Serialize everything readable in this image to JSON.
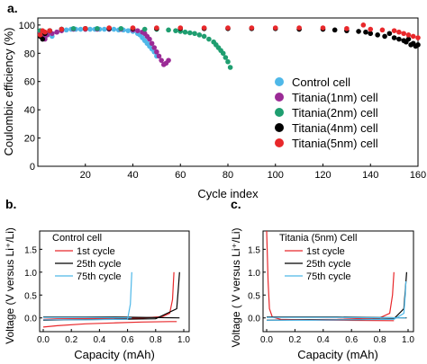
{
  "panels": {
    "a": "a.",
    "b": "b.",
    "c": "c."
  },
  "chart_data": [
    {
      "panel": "a",
      "type": "scatter",
      "xlabel": "Cycle index",
      "ylabel": "Coulombic efficiency (%)",
      "xlim": [
        0,
        160
      ],
      "ylim": [
        0,
        105
      ],
      "xticks": [
        20,
        40,
        60,
        80,
        100,
        120,
        140,
        160
      ],
      "yticks": [
        0,
        20,
        40,
        60,
        80,
        100
      ],
      "legend_position": "bottom-right",
      "series": [
        {
          "name": "Control cell",
          "color": "#4fb8e8",
          "x": [
            1,
            2,
            3,
            4,
            5,
            6,
            8,
            10,
            12,
            14,
            16,
            18,
            20,
            22,
            24,
            26,
            28,
            30,
            32,
            34,
            36,
            38,
            40,
            42,
            43,
            44,
            45,
            46,
            47,
            48,
            49,
            50
          ],
          "y": [
            96,
            93,
            91,
            94,
            95,
            92,
            95,
            97,
            96.5,
            97,
            97,
            97,
            97,
            97,
            97,
            97,
            97,
            97,
            97,
            96.5,
            96.5,
            96,
            95.5,
            94,
            93,
            91,
            89,
            87,
            85,
            83,
            81,
            78
          ]
        },
        {
          "name": "Titania(1nm) cell",
          "color": "#9b2b96",
          "x": [
            1,
            2,
            3,
            4,
            6,
            8,
            10,
            15,
            20,
            25,
            30,
            35,
            40,
            42,
            44,
            45,
            46,
            47,
            48,
            49,
            50,
            51,
            52,
            53,
            54,
            55
          ],
          "y": [
            95,
            92,
            90,
            93,
            94,
            95,
            96,
            97,
            97,
            97,
            97,
            97,
            96.5,
            96,
            95,
            94,
            92,
            90,
            87,
            84,
            81,
            78,
            75,
            72,
            73,
            75
          ]
        },
        {
          "name": "Titania(2nm) cell",
          "color": "#1f9e70",
          "x": [
            1,
            2,
            3,
            5,
            10,
            15,
            20,
            25,
            30,
            35,
            40,
            45,
            50,
            55,
            58,
            60,
            62,
            64,
            66,
            68,
            70,
            72,
            74,
            75,
            76,
            77,
            78,
            79,
            80,
            81
          ],
          "y": [
            96,
            95,
            94,
            96,
            97,
            97.5,
            97.5,
            97.5,
            97.5,
            97.5,
            97.5,
            97,
            97,
            96.5,
            96,
            95.5,
            95,
            94.5,
            94,
            93,
            92,
            90,
            88,
            86,
            84,
            82,
            80,
            77,
            74,
            70
          ]
        },
        {
          "name": "Titania(4nm) cell",
          "color": "#000000",
          "x": [
            1,
            2,
            3,
            5,
            10,
            20,
            30,
            40,
            50,
            60,
            70,
            80,
            90,
            100,
            110,
            120,
            125,
            130,
            135,
            138,
            140,
            143,
            146,
            148,
            150,
            152,
            154,
            155,
            156,
            157,
            158,
            159,
            160
          ],
          "y": [
            92,
            90,
            94,
            96,
            97,
            97.5,
            97.5,
            97.5,
            97.5,
            97.5,
            97.5,
            97.5,
            97.5,
            97.5,
            97,
            97,
            96.5,
            96,
            95.5,
            95,
            94,
            93,
            92,
            94,
            91,
            90,
            89,
            88,
            90,
            86,
            87,
            85,
            86
          ]
        },
        {
          "name": "Titania(5nm) cell",
          "color": "#e8282b",
          "x": [
            1,
            2,
            3,
            5,
            10,
            20,
            30,
            40,
            50,
            60,
            70,
            80,
            90,
            100,
            110,
            120,
            130,
            137,
            140,
            145,
            150,
            152,
            154,
            156,
            158,
            160
          ],
          "y": [
            93,
            96,
            95,
            96,
            97,
            97.5,
            98,
            98,
            98,
            98,
            98,
            98,
            98,
            98,
            98,
            98,
            97.5,
            100,
            97,
            96.5,
            96,
            95,
            94,
            93,
            92,
            91
          ]
        }
      ]
    },
    {
      "panel": "b",
      "type": "line",
      "xlabel": "Capacity (mAh)",
      "ylabel": "Voltage (V versus Li⁺/Li)",
      "legend_title": "Control cell",
      "xlim": [
        0,
        1.0
      ],
      "ylim": [
        -0.3,
        1.9
      ],
      "xticks": [
        "0.0",
        "0.2",
        "0.4",
        "0.6",
        "0.8",
        "1.0"
      ],
      "yticks": [
        "0.0",
        "0.5",
        "1.0",
        "1.5"
      ],
      "series": [
        {
          "name": "1st cycle",
          "color": "#e8282b",
          "charge_x": [
            0.0,
            0.1,
            0.3,
            0.5,
            0.7,
            0.85,
            0.9,
            0.92,
            0.93
          ],
          "charge_y": [
            -0.03,
            -0.02,
            -0.015,
            -0.01,
            -0.005,
            0.03,
            0.1,
            0.4,
            1.0
          ],
          "discharge_x": [
            0.0,
            0.1,
            0.3,
            0.5,
            0.7,
            0.9,
            0.95
          ],
          "discharge_y": [
            -0.2,
            -0.17,
            -0.13,
            -0.11,
            -0.09,
            -0.08,
            -0.08
          ]
        },
        {
          "name": "25th cycle",
          "color": "#000000",
          "charge_x": [
            0.0,
            0.2,
            0.5,
            0.8,
            0.95,
            0.96,
            0.97
          ],
          "charge_y": [
            -0.05,
            -0.04,
            -0.03,
            -0.02,
            0.2,
            0.6,
            1.0
          ],
          "discharge_x": [
            0.0,
            0.5,
            0.97
          ],
          "discharge_y": [
            0.02,
            0.02,
            0.0
          ]
        },
        {
          "name": "75th cycle",
          "color": "#4fb8e8",
          "charge_x": [
            0.0,
            0.3,
            0.6,
            0.62,
            0.63
          ],
          "charge_y": [
            -0.04,
            -0.04,
            -0.03,
            0.3,
            1.0
          ],
          "discharge_x": [
            0.0,
            0.3,
            0.63
          ],
          "discharge_y": [
            0.01,
            0.01,
            0.0
          ]
        }
      ]
    },
    {
      "panel": "c",
      "type": "line",
      "xlabel": "Capacity (mAh)",
      "ylabel": "Voltage ( V versus Li⁺/Li)",
      "legend_title": "Titania (5nm) Cell",
      "xlim": [
        0,
        1.0
      ],
      "ylim": [
        -0.3,
        1.9
      ],
      "xticks": [
        "0.0",
        "0.2",
        "0.4",
        "0.6",
        "0.8",
        "1.0"
      ],
      "yticks": [
        "0.0",
        "0.5",
        "1.0",
        "1.5"
      ],
      "series": [
        {
          "name": "1st cycle",
          "color": "#e8282b",
          "charge_x": [
            0.0,
            0.2,
            0.5,
            0.8,
            0.87,
            0.89,
            0.9
          ],
          "charge_y": [
            -0.05,
            -0.04,
            -0.03,
            0.0,
            0.1,
            0.5,
            1.0
          ],
          "discharge_x": [
            0.0,
            0.01,
            0.02,
            0.04,
            0.1,
            0.4,
            0.9
          ],
          "discharge_y": [
            1.9,
            0.8,
            0.2,
            0.02,
            -0.03,
            -0.05,
            -0.06
          ]
        },
        {
          "name": "25th cycle",
          "color": "#000000",
          "charge_x": [
            0.0,
            0.3,
            0.6,
            0.9,
            0.97,
            0.98,
            0.99
          ],
          "charge_y": [
            -0.05,
            -0.04,
            -0.04,
            -0.02,
            0.2,
            0.6,
            1.0
          ],
          "discharge_x": [
            0.0,
            0.5,
            0.99
          ],
          "discharge_y": [
            0.02,
            0.02,
            0.0
          ]
        },
        {
          "name": "75th cycle",
          "color": "#4fb8e8",
          "charge_x": [
            0.0,
            0.3,
            0.6,
            0.9,
            0.97,
            0.98,
            0.985
          ],
          "charge_y": [
            -0.05,
            -0.05,
            -0.04,
            -0.03,
            0.1,
            0.5,
            0.8
          ],
          "discharge_x": [
            0.0,
            0.5,
            0.985
          ],
          "discharge_y": [
            0.01,
            0.01,
            0.0
          ]
        }
      ]
    }
  ]
}
